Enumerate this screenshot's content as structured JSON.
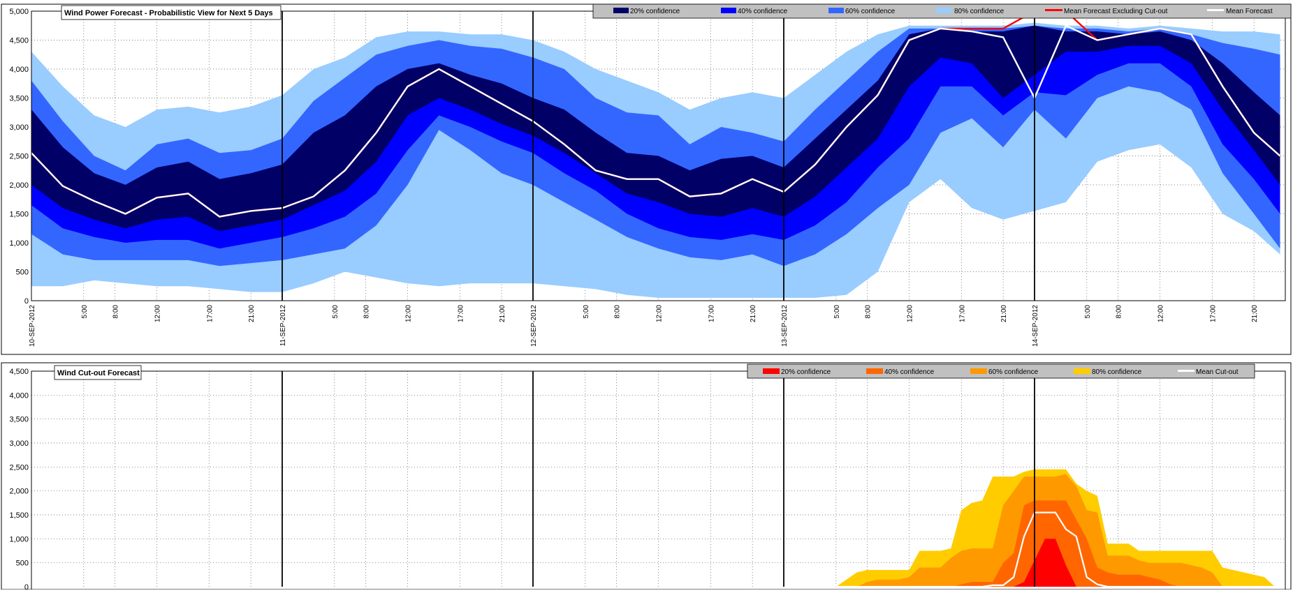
{
  "colors": {
    "c20": "#000066",
    "c40": "#0000ff",
    "c60": "#3366ff",
    "c80": "#99ccff",
    "mean": "#ffffff",
    "mean_excl": "#ff0000",
    "co20": "#ff0000",
    "co40": "#ff6600",
    "co60": "#ff9900",
    "co80": "#ffcc00",
    "co_mean": "#ffffff",
    "legend_bg": "#c0c0c0"
  },
  "x_ticks": [
    {
      "h": 0,
      "label": "10-SEP-2012",
      "date": true
    },
    {
      "h": 5,
      "label": "5:00"
    },
    {
      "h": 8,
      "label": "8:00"
    },
    {
      "h": 12,
      "label": "12:00"
    },
    {
      "h": 17,
      "label": "17:00"
    },
    {
      "h": 21,
      "label": "21:00"
    },
    {
      "h": 24,
      "label": "11-SEP-2012",
      "date": true
    },
    {
      "h": 29,
      "label": "5:00"
    },
    {
      "h": 32,
      "label": "8:00"
    },
    {
      "h": 36,
      "label": "12:00"
    },
    {
      "h": 41,
      "label": "17:00"
    },
    {
      "h": 45,
      "label": "21:00"
    },
    {
      "h": 48,
      "label": "12-SEP-2012",
      "date": true
    },
    {
      "h": 53,
      "label": "5:00"
    },
    {
      "h": 56,
      "label": "8:00"
    },
    {
      "h": 60,
      "label": "12:00"
    },
    {
      "h": 65,
      "label": "17:00"
    },
    {
      "h": 69,
      "label": "21:00"
    },
    {
      "h": 72,
      "label": "13-SEP-2012",
      "date": true
    },
    {
      "h": 77,
      "label": "5:00"
    },
    {
      "h": 80,
      "label": "8:00"
    },
    {
      "h": 84,
      "label": "12:00"
    },
    {
      "h": 89,
      "label": "17:00"
    },
    {
      "h": 93,
      "label": "21:00"
    },
    {
      "h": 96,
      "label": "14-SEP-2012",
      "date": true
    },
    {
      "h": 101,
      "label": "5:00"
    },
    {
      "h": 104,
      "label": "8:00"
    },
    {
      "h": 108,
      "label": "12:00"
    },
    {
      "h": 113,
      "label": "17:00"
    },
    {
      "h": 117,
      "label": "21:00"
    }
  ],
  "chart_data": [
    {
      "type": "area",
      "title": "Wind Power Forecast - Probabilistic View for Next 5 Days",
      "x_unit": "hours from 10-SEP-2012 00:00",
      "ylim": [
        0,
        5000
      ],
      "yticks": [
        "0",
        "500",
        "1,000",
        "1,500",
        "2,000",
        "2,500",
        "3,000",
        "3,500",
        "4,000",
        "4,500",
        "5,000"
      ],
      "grid": true,
      "legend_position": "top-right",
      "legend": [
        "20% confidence",
        "40% confidence",
        "60% confidence",
        "80% confidence",
        "Mean Forecast Excluding Cut-out",
        "Mean Forecast"
      ],
      "x": [
        0,
        3,
        6,
        9,
        12,
        15,
        18,
        21,
        24,
        27,
        30,
        33,
        36,
        39,
        42,
        45,
        48,
        51,
        54,
        57,
        60,
        63,
        66,
        69,
        72,
        75,
        78,
        81,
        84,
        87,
        90,
        93,
        96,
        99,
        102,
        105,
        108,
        111,
        114,
        117,
        119.5
      ],
      "series": [
        {
          "name": "80% confidence",
          "lower": [
            250,
            250,
            350,
            300,
            250,
            250,
            200,
            150,
            150,
            300,
            500,
            400,
            300,
            250,
            300,
            300,
            300,
            250,
            200,
            100,
            50,
            50,
            50,
            50,
            50,
            50,
            100,
            500,
            1700,
            2100,
            1600,
            1400,
            1550,
            1700,
            2400,
            2600,
            2700,
            2300,
            1500,
            1200,
            800
          ],
          "upper": [
            4300,
            3700,
            3200,
            3000,
            3300,
            3350,
            3250,
            3350,
            3550,
            4000,
            4200,
            4550,
            4650,
            4650,
            4600,
            4600,
            4500,
            4300,
            4000,
            3800,
            3600,
            3300,
            3500,
            3600,
            3500,
            3900,
            4300,
            4600,
            4750,
            4750,
            4750,
            4750,
            4800,
            4750,
            4750,
            4700,
            4750,
            4700,
            4650,
            4650,
            4600
          ]
        },
        {
          "name": "60% confidence",
          "lower": [
            1150,
            800,
            700,
            700,
            700,
            700,
            600,
            650,
            700,
            800,
            900,
            1300,
            2000,
            2950,
            2600,
            2200,
            2000,
            1700,
            1400,
            1100,
            900,
            750,
            700,
            800,
            600,
            800,
            1150,
            1600,
            2000,
            2900,
            3150,
            2650,
            3300,
            2800,
            3500,
            3700,
            3600,
            3300,
            2200,
            1500,
            900
          ],
          "upper": [
            3800,
            3100,
            2500,
            2250,
            2700,
            2800,
            2550,
            2600,
            2800,
            3450,
            3850,
            4250,
            4400,
            4500,
            4400,
            4350,
            4200,
            4000,
            3500,
            3250,
            3200,
            2700,
            3000,
            2900,
            2750,
            3300,
            3800,
            4300,
            4700,
            4700,
            4700,
            4700,
            4750,
            4700,
            4700,
            4650,
            4700,
            4600,
            4450,
            4350,
            4250
          ]
        },
        {
          "name": "40% confidence",
          "lower": [
            1650,
            1250,
            1100,
            1000,
            1050,
            1050,
            900,
            1000,
            1100,
            1250,
            1450,
            1850,
            2600,
            3200,
            3000,
            2750,
            2550,
            2200,
            1900,
            1500,
            1250,
            1100,
            1050,
            1150,
            1050,
            1300,
            1700,
            2300,
            2800,
            3700,
            3700,
            3200,
            3600,
            3550,
            3900,
            4100,
            4100,
            3700,
            2700,
            2100,
            1500
          ]
        },
        {
          "name": "20% confidence",
          "lower": [
            2000,
            1600,
            1400,
            1250,
            1400,
            1450,
            1200,
            1300,
            1400,
            1650,
            1900,
            2400,
            3200,
            3500,
            3300,
            3050,
            2850,
            2550,
            2200,
            1850,
            1700,
            1500,
            1450,
            1600,
            1450,
            1800,
            2300,
            2800,
            3700,
            4200,
            4100,
            3500,
            3900,
            4300,
            4300,
            4400,
            4400,
            4100,
            3300,
            2600,
            2000
          ],
          "upper": [
            3300,
            2650,
            2200,
            2000,
            2300,
            2400,
            2100,
            2200,
            2350,
            2900,
            3200,
            3700,
            4000,
            4100,
            3900,
            3750,
            3500,
            3300,
            2900,
            2550,
            2500,
            2250,
            2450,
            2500,
            2300,
            2800,
            3300,
            3800,
            4600,
            4700,
            4650,
            4650,
            4750,
            4650,
            4650,
            4600,
            4650,
            4500,
            4100,
            3600,
            3200
          ]
        },
        {
          "name": "Mean Forecast",
          "values": [
            2550,
            1980,
            1720,
            1500,
            1780,
            1850,
            1450,
            1550,
            1600,
            1800,
            2250,
            2900,
            3700,
            4000,
            3700,
            3400,
            3100,
            2700,
            2250,
            2100,
            2100,
            1800,
            1850,
            2100,
            1880,
            2350,
            3000,
            3550,
            4500,
            4700,
            4650,
            4550,
            3500,
            4750,
            4500,
            4600,
            4700,
            4600,
            3700,
            2900,
            2500
          ]
        },
        {
          "name": "Mean Forecast Excluding Cut-out",
          "values": [
            2550,
            1980,
            1720,
            1500,
            1780,
            1850,
            1450,
            1550,
            1600,
            1800,
            2250,
            2900,
            3700,
            4000,
            3700,
            3400,
            3100,
            2700,
            2250,
            2100,
            2100,
            1800,
            1850,
            2100,
            1880,
            2350,
            3000,
            3550,
            4500,
            4700,
            4700,
            4700,
            5000,
            5000,
            4500,
            4600,
            4700,
            4600,
            3700,
            2900,
            2500
          ]
        }
      ]
    },
    {
      "type": "area",
      "title": "Wind Cut-out Forecast",
      "x_unit": "hours from 10-SEP-2012 00:00",
      "ylim": [
        0,
        4500
      ],
      "yticks": [
        "0",
        "500",
        "1,000",
        "1,500",
        "2,000",
        "2,500",
        "3,000",
        "3,500",
        "4,000",
        "4,500"
      ],
      "grid": true,
      "legend_position": "top-right",
      "legend": [
        "20% confidence",
        "40% confidence",
        "60% confidence",
        "80% confidence",
        "Mean Cut-out"
      ],
      "x": [
        77,
        78,
        79,
        80,
        81,
        82,
        83,
        84,
        85,
        86,
        87,
        88,
        89,
        90,
        91,
        92,
        93,
        94,
        95,
        96,
        97,
        98,
        99,
        100,
        101,
        102,
        103,
        104,
        105,
        106,
        107,
        108,
        109,
        110,
        111,
        112,
        113,
        114,
        115,
        116,
        117,
        118,
        119
      ],
      "series": [
        {
          "name": "80% confidence",
          "values": [
            0,
            150,
            300,
            350,
            350,
            350,
            350,
            350,
            750,
            750,
            750,
            800,
            1600,
            1750,
            1800,
            2300,
            2300,
            2300,
            2400,
            2450,
            2450,
            2450,
            2450,
            2150,
            2000,
            1900,
            900,
            900,
            900,
            750,
            750,
            750,
            750,
            750,
            750,
            750,
            750,
            400,
            350,
            300,
            250,
            200,
            0
          ]
        },
        {
          "name": "60% confidence",
          "values": [
            0,
            0,
            0,
            100,
            150,
            150,
            150,
            200,
            400,
            400,
            400,
            600,
            750,
            800,
            800,
            800,
            1700,
            2000,
            2300,
            2300,
            2300,
            2300,
            2350,
            2100,
            1600,
            1550,
            650,
            650,
            650,
            550,
            500,
            500,
            500,
            500,
            450,
            400,
            300,
            0,
            0,
            0,
            0,
            0,
            0
          ]
        },
        {
          "name": "40% confidence",
          "values": [
            0,
            0,
            0,
            0,
            0,
            0,
            0,
            0,
            0,
            0,
            0,
            0,
            50,
            100,
            100,
            100,
            500,
            700,
            1700,
            1800,
            1800,
            1800,
            1800,
            1400,
            1000,
            400,
            300,
            250,
            250,
            250,
            200,
            150,
            50,
            0,
            0,
            0,
            0,
            0,
            0,
            0,
            0,
            0,
            0
          ]
        },
        {
          "name": "20% confidence",
          "values": [
            0,
            0,
            0,
            0,
            0,
            0,
            0,
            0,
            0,
            0,
            0,
            0,
            0,
            0,
            0,
            0,
            0,
            0,
            100,
            550,
            1000,
            1000,
            450,
            0,
            0,
            0,
            0,
            0,
            0,
            0,
            0,
            0,
            0,
            0,
            0,
            0,
            0,
            0,
            0,
            0,
            0,
            0,
            0
          ]
        },
        {
          "name": "Mean Cut-out",
          "values": [
            0,
            0,
            0,
            0,
            0,
            0,
            0,
            0,
            0,
            0,
            0,
            0,
            0,
            0,
            0,
            30,
            30,
            200,
            1050,
            1550,
            1550,
            1550,
            1200,
            1050,
            200,
            50,
            0,
            0,
            0,
            0,
            0,
            0,
            0,
            0,
            0,
            0,
            0,
            0,
            0,
            0,
            0,
            0,
            0
          ]
        }
      ]
    }
  ]
}
